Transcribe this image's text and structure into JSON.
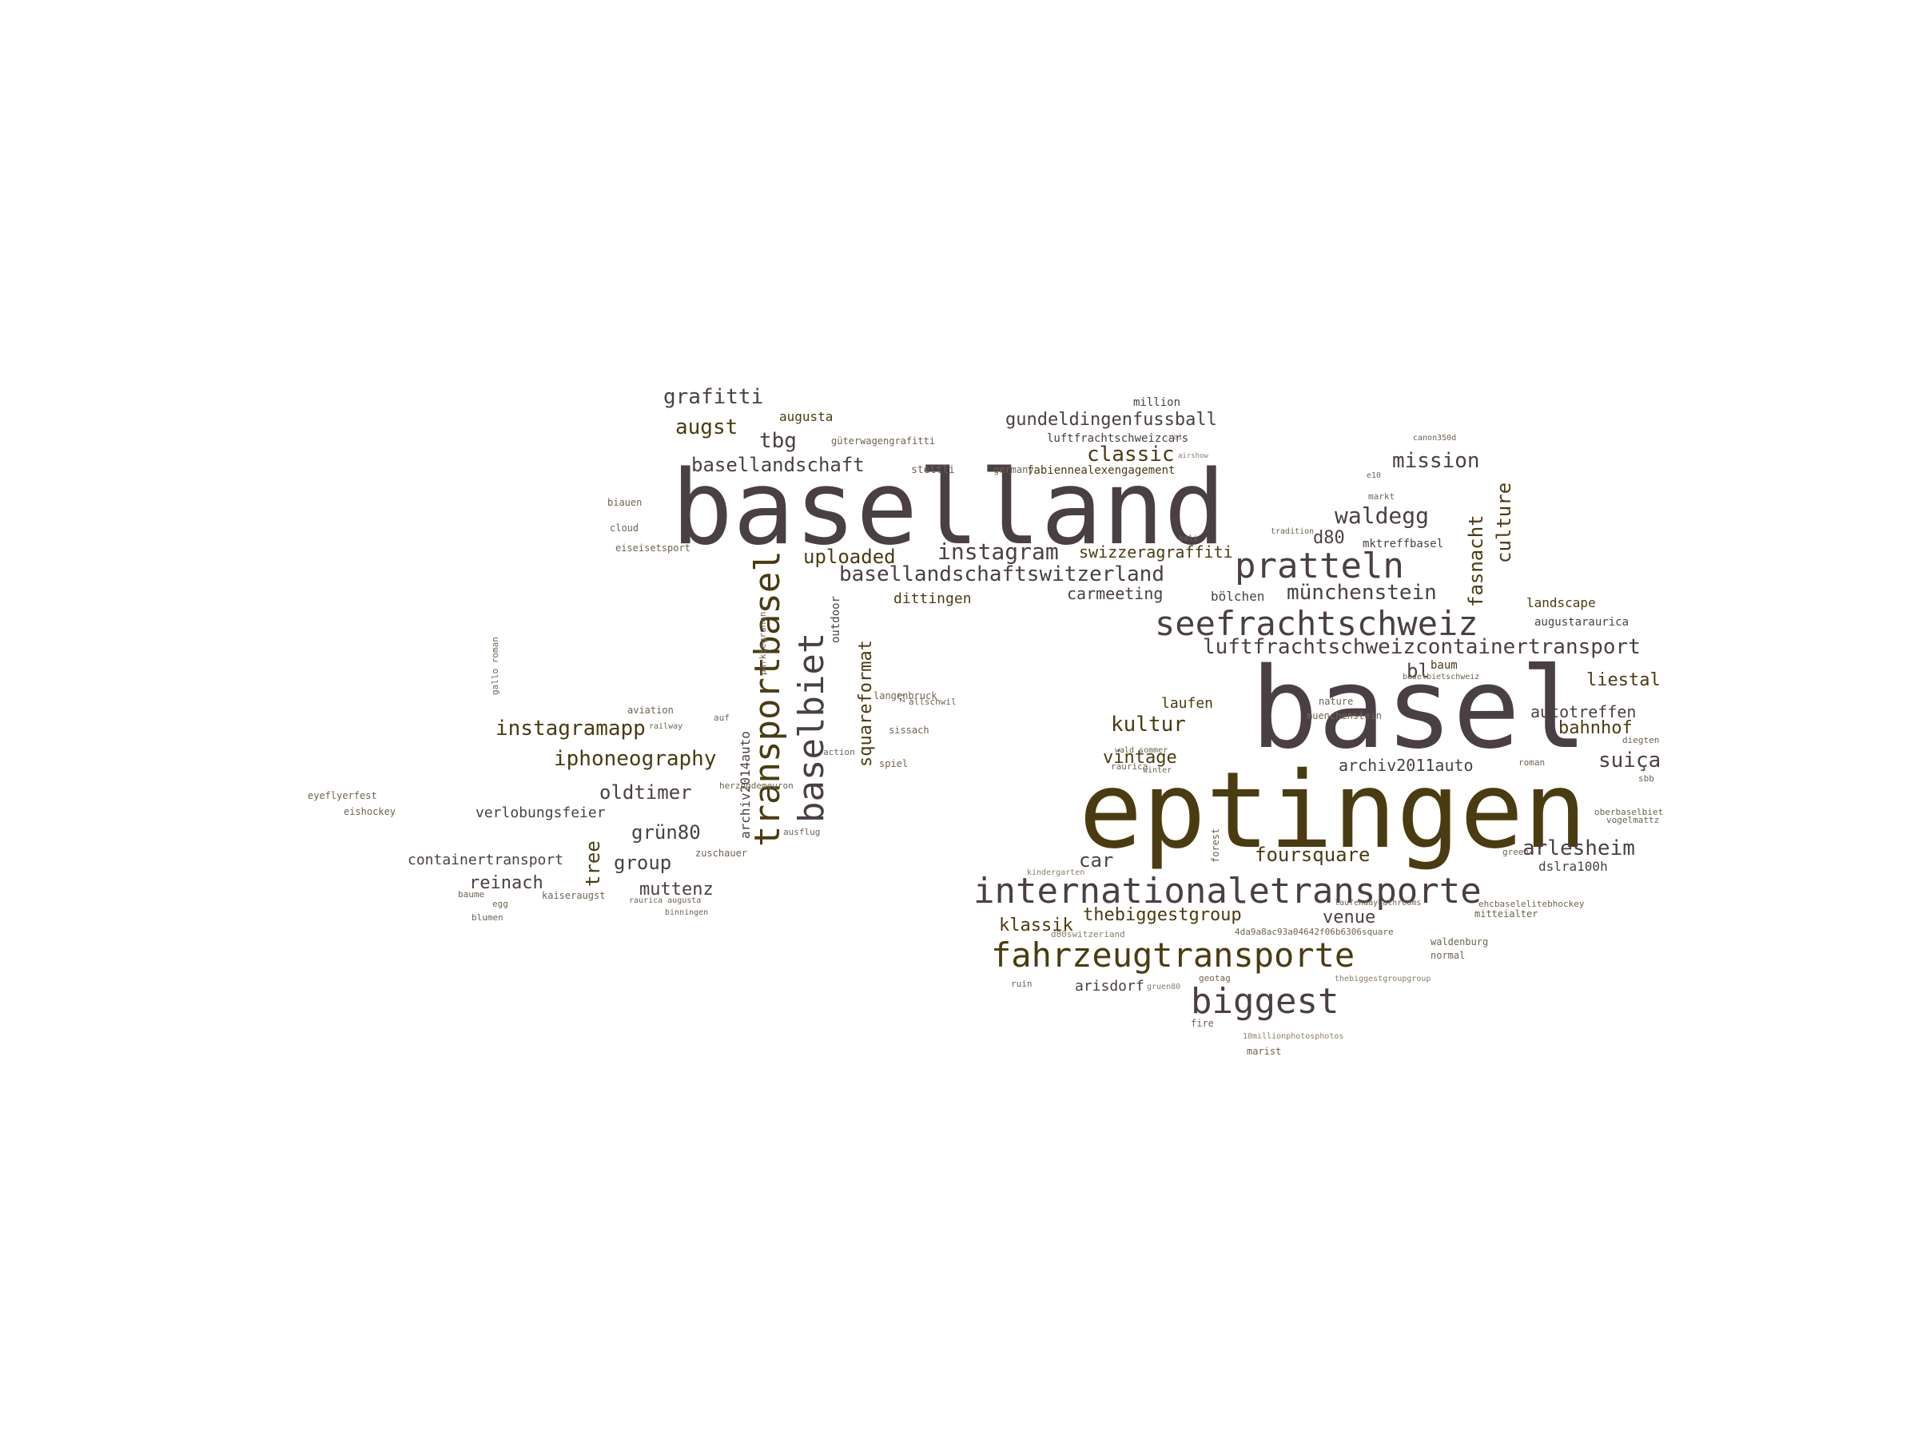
{
  "palette": {
    "dark": "#4a3f45",
    "olive": "#4a3c10",
    "muted": "#6f6350",
    "light": "#8a7d6a"
  },
  "words": [
    {
      "text": "basel",
      "weight": 100
    },
    {
      "text": "eptingen",
      "weight": 95
    },
    {
      "text": "baselland",
      "weight": 92
    },
    {
      "text": "transportbasel",
      "weight": 60
    },
    {
      "text": "baselbiet",
      "weight": 58
    },
    {
      "text": "internationaletransporte",
      "weight": 55
    },
    {
      "text": "seefrachtschweiz",
      "weight": 54
    },
    {
      "text": "fahrzeugtransporte",
      "weight": 52
    },
    {
      "text": "pratteln",
      "weight": 50
    },
    {
      "text": "biggest",
      "weight": 48
    },
    {
      "text": "luftfrachtschweizcontainertransport",
      "weight": 40
    },
    {
      "text": "basellandschaftswitzerland",
      "weight": 38
    },
    {
      "text": "instagramapp",
      "weight": 36
    },
    {
      "text": "iphoneography",
      "weight": 36
    },
    {
      "text": "basellandschaft",
      "weight": 35
    },
    {
      "text": "grafitti",
      "weight": 34
    },
    {
      "text": "instagram",
      "weight": 34
    },
    {
      "text": "kultur",
      "weight": 33
    },
    {
      "text": "waldegg",
      "weight": 33
    },
    {
      "text": "mission",
      "weight": 32
    },
    {
      "text": "classic",
      "weight": 32
    },
    {
      "text": "augst",
      "weight": 32
    },
    {
      "text": "tbg",
      "weight": 32
    },
    {
      "text": "uploaded",
      "weight": 32
    },
    {
      "text": "suiça",
      "weight": 32
    },
    {
      "text": "arlesheim",
      "weight": 31
    },
    {
      "text": "foursquare",
      "weight": 31
    },
    {
      "text": "münchenstein",
      "weight": 31
    },
    {
      "text": "oldtimer",
      "weight": 31
    },
    {
      "text": "grün80",
      "weight": 31
    },
    {
      "text": "group",
      "weight": 31
    },
    {
      "text": "fasnacht",
      "weight": 30
    },
    {
      "text": "culture",
      "weight": 30
    },
    {
      "text": "squareformat",
      "weight": 30
    },
    {
      "text": "thebiggestgroup",
      "weight": 29
    },
    {
      "text": "venue",
      "weight": 29
    },
    {
      "text": "klassik",
      "weight": 29
    },
    {
      "text": "car",
      "weight": 29
    },
    {
      "text": "archiv2011auto",
      "weight": 28
    },
    {
      "text": "liestal",
      "weight": 28
    },
    {
      "text": "bahnhof",
      "weight": 28
    },
    {
      "text": "reinach",
      "weight": 28
    },
    {
      "text": "muttenz",
      "weight": 28
    },
    {
      "text": "vintage",
      "weight": 27
    },
    {
      "text": "gundeldingenfussball",
      "weight": 27
    },
    {
      "text": "d80",
      "weight": 27
    },
    {
      "text": "bl",
      "weight": 27
    },
    {
      "text": "tree",
      "weight": 27
    },
    {
      "text": "autotreffen",
      "weight": 26
    },
    {
      "text": "carmeeting",
      "weight": 26
    },
    {
      "text": "swizzeragraffiti",
      "weight": 25
    },
    {
      "text": "containertransport",
      "weight": 25
    },
    {
      "text": "verlobungsfeier",
      "weight": 25
    },
    {
      "text": "arisdorf",
      "weight": 24
    },
    {
      "text": "dittingen",
      "weight": 24
    },
    {
      "text": "laufen",
      "weight": 24
    },
    {
      "text": "augusta",
      "weight": 22
    },
    {
      "text": "landscape",
      "weight": 22
    },
    {
      "text": "bölchen",
      "weight": 22
    },
    {
      "text": "dslra100h",
      "weight": 22
    },
    {
      "text": "archiv2014auto",
      "weight": 22
    },
    {
      "text": "mktreffbasel",
      "weight": 21
    },
    {
      "text": "augustaraurica",
      "weight": 20
    },
    {
      "text": "baum",
      "weight": 20
    },
    {
      "text": "outdoor",
      "weight": 20
    },
    {
      "text": "fabiennealexengagement",
      "weight": 20
    },
    {
      "text": "luftfrachtschweizcars",
      "weight": 20
    },
    {
      "text": "million",
      "weight": 20
    },
    {
      "text": "stettli",
      "weight": 19
    },
    {
      "text": "germany",
      "weight": 18
    },
    {
      "text": "sissach",
      "weight": 18
    },
    {
      "text": "spiel",
      "weight": 18
    },
    {
      "text": "zuschauer",
      "weight": 18
    },
    {
      "text": "kaiseraugst",
      "weight": 18
    },
    {
      "text": "eiseisetsport",
      "weight": 18
    },
    {
      "text": "langenbruck",
      "weight": 18
    },
    {
      "text": "aviation",
      "weight": 18
    },
    {
      "text": "railway",
      "weight": 17
    },
    {
      "text": "biauen",
      "weight": 18
    },
    {
      "text": "cloud",
      "weight": 18
    },
    {
      "text": "güterwagengrafitti",
      "weight": 18
    },
    {
      "text": "nature",
      "weight": 18
    },
    {
      "text": "muenchenstein",
      "weight": 18
    },
    {
      "text": "mitteialter",
      "weight": 18
    },
    {
      "text": "waldenburg",
      "weight": 18
    },
    {
      "text": "normal",
      "weight": 18
    },
    {
      "text": "fire",
      "weight": 18
    },
    {
      "text": "marist",
      "weight": 18
    },
    {
      "text": "roman",
      "weight": 17
    },
    {
      "text": "sbb",
      "weight": 17
    },
    {
      "text": "oberbaselbiet",
      "weight": 17
    },
    {
      "text": "green",
      "weight": 17
    },
    {
      "text": "vogelmattz",
      "weight": 17
    },
    {
      "text": "diegten",
      "weight": 17
    },
    {
      "text": "action",
      "weight": 17
    },
    {
      "text": "ausflug",
      "weight": 17
    },
    {
      "text": "ruin",
      "weight": 17
    },
    {
      "text": "forest",
      "weight": 18
    },
    {
      "text": "kindergarten",
      "weight": 16
    },
    {
      "text": "d80switzeriand",
      "weight": 16
    },
    {
      "text": "4da9a8ac93a04642f06b6306square",
      "weight": 16
    },
    {
      "text": "10millionphotosphotos",
      "weight": 16
    },
    {
      "text": "thebiggestgroupgroup",
      "weight": 16
    },
    {
      "text": "ehcbaselelitebhockey",
      "weight": 16
    },
    {
      "text": "laufendaybathrooms",
      "weight": 16
    },
    {
      "text": "baselbietschweiz",
      "weight": 16
    },
    {
      "text": "gruen80",
      "weight": 16
    },
    {
      "text": "geotag",
      "weight": 16
    },
    {
      "text": "raurica",
      "weight": 16
    },
    {
      "text": "eyeflyerfest",
      "weight": 16
    },
    {
      "text": "eishockey",
      "weight": 16
    },
    {
      "text": "blumen",
      "weight": 16
    },
    {
      "text": "egg",
      "weight": 16
    },
    {
      "text": "baume",
      "weight": 15
    },
    {
      "text": "binningen",
      "weight": 15
    },
    {
      "text": "raurica augusta",
      "weight": 15
    },
    {
      "text": "wald sommer",
      "weight": 15
    },
    {
      "text": "winter",
      "weight": 15
    },
    {
      "text": "bali",
      "weight": 15
    },
    {
      "text": "tradition",
      "weight": 15
    },
    {
      "text": "markt",
      "weight": 14
    },
    {
      "text": "airshow",
      "weight": 14
    },
    {
      "text": "canon350d",
      "weight": 14
    },
    {
      "text": "e10",
      "weight": 15
    },
    {
      "text": "allschwil",
      "weight": 15
    },
    {
      "text": "z7",
      "weight": 15
    },
    {
      "text": "auf",
      "weight": 14
    },
    {
      "text": "herzogdemeuron",
      "weight": 15
    },
    {
      "text": "parkiegrunen",
      "weight": 14
    },
    {
      "text": "gallo roman",
      "weight": 14
    },
    {
      "text": "rai",
      "weight": 14
    }
  ]
}
